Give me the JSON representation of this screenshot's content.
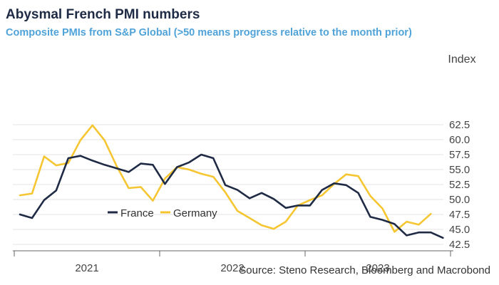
{
  "chart_data": {
    "type": "line",
    "title": "Abysmal French PMI numbers",
    "subtitle": "Composite PMIs from S&P Global (>50 means progress relative to the month prior)",
    "ylabel": "Index",
    "source": "Source: Steno Research, Bloomberg and Macrobond",
    "ylim": [
      42.5,
      63.5
    ],
    "yticks": [
      "62.5",
      "60.0",
      "57.5",
      "55.0",
      "52.5",
      "50.0",
      "47.5",
      "45.0",
      "42.5"
    ],
    "ytick_values": [
      62.5,
      60.0,
      57.5,
      55.0,
      52.5,
      50.0,
      47.5,
      45.0,
      42.5
    ],
    "x_start": "2020-06",
    "x_months": 41,
    "xtick_labels": [
      "2021",
      "2022",
      "2023"
    ],
    "grid": true,
    "legend": "bottom-left",
    "series": [
      {
        "name": "France",
        "color": "#1f2a44",
        "values": [
          47.5,
          46.9,
          49.9,
          51.5,
          56.9,
          57.3,
          56.5,
          55.8,
          55.2,
          54.6,
          56.0,
          55.8,
          52.6,
          55.4,
          56.2,
          57.5,
          56.9,
          52.4,
          51.6,
          50.2,
          51.1,
          50.1,
          48.6,
          49.0,
          49.0,
          51.6,
          52.7,
          52.4,
          51.1,
          47.1,
          46.6,
          45.9,
          44.0,
          44.5,
          44.5,
          43.6
        ]
      },
      {
        "name": "Germany",
        "color": "#f5c631",
        "values": [
          50.7,
          51.0,
          57.2,
          55.7,
          56.1,
          59.9,
          62.4,
          59.9,
          55.6,
          51.9,
          52.1,
          49.8,
          53.5,
          55.4,
          55.0,
          54.3,
          53.8,
          51.2,
          48.1,
          46.9,
          45.7,
          45.1,
          46.3,
          49.0,
          49.9,
          50.7,
          52.6,
          54.2,
          53.9,
          50.6,
          48.5,
          44.6,
          46.3,
          45.8,
          47.6
        ]
      }
    ]
  }
}
